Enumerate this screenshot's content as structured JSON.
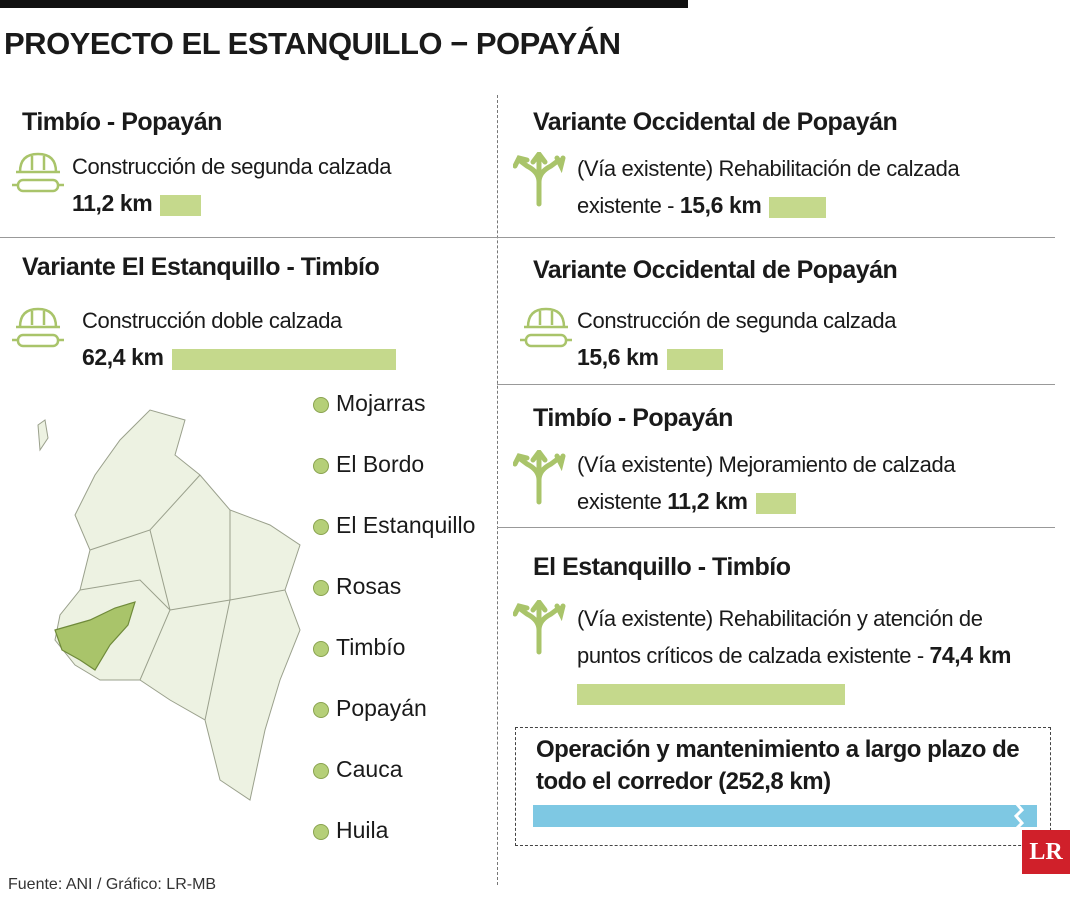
{
  "header": {
    "title": "PROYECTO EL ESTANQUILLO − POPAYÁN"
  },
  "left_sections": [
    {
      "title": "Timbío - Popayán",
      "icon": "helmet",
      "description": "Construcción de segunda calzada",
      "length": {
        "value": 11.2,
        "label": "11,2 km"
      }
    },
    {
      "title": "Variante El Estanquillo - Timbío",
      "icon": "helmet",
      "description": "Construcción doble calzada",
      "length": {
        "value": 62.4,
        "label": "62,4 km"
      }
    }
  ],
  "right_sections": [
    {
      "title": "Variante Occidental de Popayán",
      "icon": "road",
      "description": "(Vía existente) Rehabilitación de calzada existente -",
      "length": {
        "value": 15.6,
        "label": "15,6 km"
      }
    },
    {
      "title": "Variante Occidental de Popayán",
      "icon": "helmet",
      "description": "Construcción de segunda calzada",
      "length": {
        "value": 15.6,
        "label": "15,6 km"
      }
    },
    {
      "title": "Timbío - Popayán",
      "icon": "road",
      "description": "(Vía existente)  Mejoramiento de calzada existente",
      "length": {
        "value": 11.2,
        "label": "11,2 km"
      }
    },
    {
      "title": "El Estanquillo - Timbío",
      "icon": "road",
      "description": "(Vía existente) Rehabilitación y atención de puntos críticos de calzada existente -",
      "length": {
        "value": 74.4,
        "label": "74,4 km"
      }
    }
  ],
  "summary": {
    "text": "Operación y mantenimiento a largo plazo de todo el corredor (252,8 km)"
  },
  "map_legend": [
    "Mojarras",
    "El Bordo",
    "El Estanquillo",
    "Rosas",
    "Timbío",
    "Popayán",
    "Cauca",
    "Huila"
  ],
  "footer": {
    "source": "Fuente: ANI  / Gráfico: LR-MB"
  },
  "logo": "LR"
}
